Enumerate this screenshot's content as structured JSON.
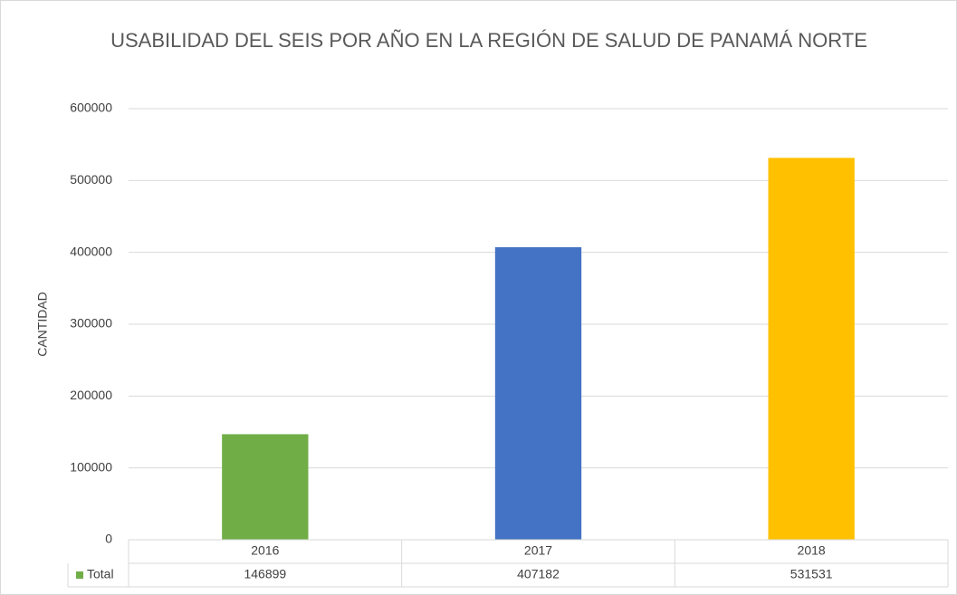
{
  "chart_data": {
    "type": "bar",
    "title": "USABILIDAD DEL SEIS POR AÑO EN LA REGIÓN DE SALUD DE PANAMÁ NORTE",
    "y_label": "CANTIDAD",
    "categories": [
      "2016",
      "2017",
      "2018"
    ],
    "series": [
      {
        "name": "Total",
        "values": [
          146899,
          407182,
          531531
        ]
      }
    ],
    "colors": [
      "#70ad47",
      "#4472c4",
      "#ffc000"
    ],
    "ylim": [
      0,
      600000
    ],
    "yticks": [
      0,
      100000,
      200000,
      300000,
      400000,
      500000,
      600000
    ],
    "grid": true,
    "data_table": true
  }
}
